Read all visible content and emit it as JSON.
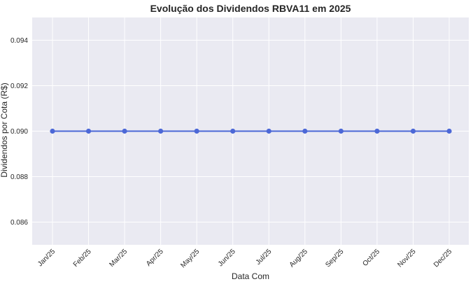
{
  "chart_data": {
    "type": "line",
    "title": "Evolução dos Dividendos RBVA11 em 2025",
    "xlabel": "Data Com",
    "ylabel": "Dividendos por Cota (R$)",
    "categories": [
      "Jan/25",
      "Feb/25",
      "Mar/25",
      "Apr/25",
      "May/25",
      "Jun/25",
      "Jul/25",
      "Aug/25",
      "Sep/25",
      "Oct/25",
      "Nov/25",
      "Dec/25"
    ],
    "series": [
      {
        "values": [
          0.09,
          0.09,
          0.09,
          0.09,
          0.09,
          0.09,
          0.09,
          0.09,
          0.09,
          0.09,
          0.09,
          0.09
        ]
      }
    ],
    "ylim": [
      0.085,
      0.095
    ],
    "yticks": [
      "0.086",
      "0.088",
      "0.090",
      "0.092",
      "0.094"
    ],
    "grid": true,
    "colors": {
      "line": "#4c68d7",
      "background": "#eaeaf2",
      "grid": "#ffffff"
    }
  }
}
